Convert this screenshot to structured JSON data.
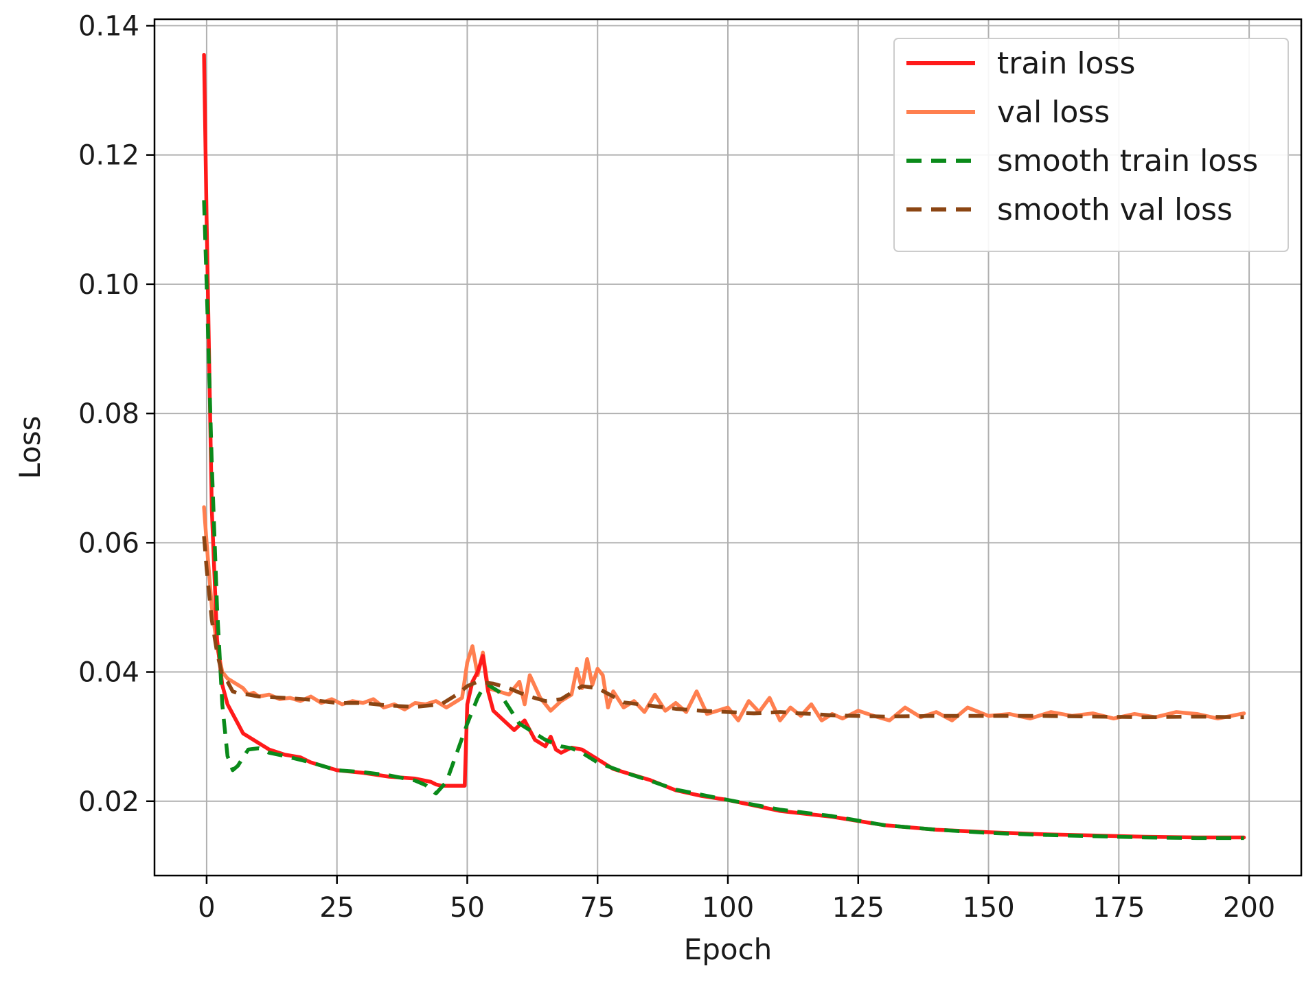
{
  "chart_data": {
    "type": "line",
    "title": "",
    "xlabel": "Epoch",
    "ylabel": "Loss",
    "xlim": [
      -10,
      210
    ],
    "ylim": [
      0.0085,
      0.141
    ],
    "xticks": [
      0,
      25,
      50,
      75,
      100,
      125,
      150,
      175,
      200
    ],
    "yticks": [
      0.02,
      0.04,
      0.06,
      0.08,
      0.1,
      0.12,
      0.14
    ],
    "ytick_labels": [
      "0.02",
      "0.04",
      "0.06",
      "0.08",
      "0.10",
      "0.12",
      "0.14"
    ],
    "grid": true,
    "legend_position": "top-right",
    "series": [
      {
        "name": "train loss",
        "color": "#ff1a1a",
        "dash": "solid",
        "x": [
          -0.5,
          0,
          1,
          2,
          3,
          4,
          5,
          6,
          7,
          8,
          10,
          12,
          15,
          18,
          20,
          25,
          30,
          35,
          40,
          43,
          44,
          45,
          47,
          49,
          49.5,
          50,
          51,
          52,
          53,
          54,
          55,
          57,
          59,
          61,
          63,
          65,
          66,
          67,
          68,
          70,
          72,
          75,
          78,
          80,
          85,
          90,
          95,
          100,
          110,
          120,
          130,
          140,
          150,
          160,
          170,
          180,
          190,
          199
        ],
        "y": [
          0.1355,
          0.11,
          0.065,
          0.045,
          0.038,
          0.035,
          0.0335,
          0.032,
          0.0305,
          0.03,
          0.029,
          0.028,
          0.0272,
          0.0268,
          0.026,
          0.0248,
          0.0244,
          0.0238,
          0.0235,
          0.023,
          0.0226,
          0.0224,
          0.0224,
          0.0224,
          0.0224,
          0.035,
          0.0385,
          0.04,
          0.0425,
          0.037,
          0.034,
          0.0325,
          0.031,
          0.0325,
          0.0295,
          0.0285,
          0.03,
          0.028,
          0.0275,
          0.0283,
          0.028,
          0.0265,
          0.025,
          0.0245,
          0.0233,
          0.0217,
          0.0208,
          0.0202,
          0.0185,
          0.0176,
          0.0163,
          0.0156,
          0.0152,
          0.0149,
          0.0147,
          0.0145,
          0.0144,
          0.0144
        ]
      },
      {
        "name": "val loss",
        "color": "#ff7f4f",
        "dash": "solid",
        "x": [
          -0.5,
          0,
          1,
          2,
          3,
          4,
          5,
          6,
          7,
          8,
          9,
          10,
          12,
          14,
          16,
          18,
          20,
          22,
          24,
          26,
          28,
          30,
          32,
          34,
          36,
          38,
          40,
          42,
          44,
          46,
          48,
          49,
          50,
          51,
          52,
          53,
          54,
          56,
          58,
          60,
          61,
          62,
          64,
          66,
          68,
          70,
          71,
          72,
          73,
          74,
          75,
          76,
          77,
          78,
          80,
          82,
          84,
          86,
          88,
          90,
          92,
          94,
          96,
          98,
          100,
          102,
          104,
          106,
          108,
          110,
          112,
          114,
          116,
          118,
          120,
          122,
          125,
          128,
          131,
          134,
          137,
          140,
          143,
          146,
          150,
          154,
          158,
          162,
          166,
          170,
          174,
          178,
          182,
          186,
          190,
          194,
          199
        ],
        "y": [
          0.0655,
          0.06,
          0.05,
          0.044,
          0.04,
          0.039,
          0.0385,
          0.038,
          0.0375,
          0.0365,
          0.0368,
          0.0362,
          0.0365,
          0.0358,
          0.036,
          0.0355,
          0.0362,
          0.0352,
          0.0358,
          0.035,
          0.0355,
          0.0352,
          0.0358,
          0.0345,
          0.035,
          0.0342,
          0.0352,
          0.035,
          0.0355,
          0.0345,
          0.0355,
          0.036,
          0.0415,
          0.044,
          0.0395,
          0.043,
          0.0375,
          0.037,
          0.0365,
          0.0385,
          0.035,
          0.0395,
          0.036,
          0.034,
          0.0355,
          0.0365,
          0.0405,
          0.0375,
          0.042,
          0.038,
          0.0405,
          0.0395,
          0.0345,
          0.037,
          0.0345,
          0.0355,
          0.0338,
          0.0365,
          0.034,
          0.0352,
          0.0338,
          0.037,
          0.0335,
          0.034,
          0.0345,
          0.0325,
          0.0355,
          0.0338,
          0.036,
          0.0325,
          0.0345,
          0.0332,
          0.035,
          0.0325,
          0.0335,
          0.0328,
          0.034,
          0.0332,
          0.0325,
          0.0345,
          0.033,
          0.0338,
          0.0325,
          0.0345,
          0.0332,
          0.0335,
          0.0328,
          0.0338,
          0.0332,
          0.0336,
          0.0328,
          0.0335,
          0.033,
          0.0338,
          0.0335,
          0.0328,
          0.0336
        ]
      },
      {
        "name": "smooth train loss",
        "color": "#0a8a1a",
        "dash": "dashed",
        "x": [
          -0.5,
          0,
          1,
          2,
          3,
          4,
          5,
          6,
          7,
          8,
          10,
          12,
          15,
          20,
          25,
          30,
          35,
          40,
          42,
          43,
          44,
          46,
          48,
          50,
          52,
          53,
          54,
          56,
          58,
          60,
          62,
          65,
          68,
          70,
          72,
          75,
          80,
          85,
          90,
          95,
          100,
          110,
          120,
          130,
          140,
          150,
          160,
          170,
          180,
          190,
          199
        ],
        "y": [
          0.113,
          0.1,
          0.072,
          0.05,
          0.035,
          0.027,
          0.0248,
          0.0255,
          0.0268,
          0.028,
          0.0282,
          0.0275,
          0.027,
          0.026,
          0.0248,
          0.0245,
          0.024,
          0.0232,
          0.0225,
          0.0218,
          0.0212,
          0.023,
          0.0275,
          0.032,
          0.036,
          0.0375,
          0.038,
          0.037,
          0.0345,
          0.032,
          0.031,
          0.0295,
          0.0285,
          0.0282,
          0.0275,
          0.026,
          0.0245,
          0.0232,
          0.0218,
          0.021,
          0.0202,
          0.0187,
          0.0177,
          0.0163,
          0.0156,
          0.0151,
          0.0148,
          0.0146,
          0.0144,
          0.0143,
          0.0143
        ]
      },
      {
        "name": "smooth val loss",
        "color": "#8b4513",
        "dash": "dashed",
        "x": [
          -0.5,
          0,
          1,
          2,
          3,
          4,
          5,
          6,
          8,
          10,
          15,
          20,
          25,
          30,
          35,
          40,
          45,
          48,
          50,
          52,
          55,
          58,
          60,
          62,
          65,
          68,
          70,
          72,
          75,
          78,
          80,
          85,
          90,
          95,
          100,
          105,
          110,
          120,
          130,
          140,
          150,
          160,
          170,
          180,
          190,
          199
        ],
        "y": [
          0.061,
          0.056,
          0.048,
          0.043,
          0.0395,
          0.0385,
          0.037,
          0.0367,
          0.0365,
          0.0362,
          0.036,
          0.0357,
          0.0352,
          0.0352,
          0.0348,
          0.0346,
          0.035,
          0.0365,
          0.0378,
          0.0385,
          0.0382,
          0.0375,
          0.0368,
          0.0362,
          0.0355,
          0.0358,
          0.0368,
          0.0378,
          0.0375,
          0.0362,
          0.0353,
          0.0348,
          0.0343,
          0.034,
          0.0338,
          0.0336,
          0.0338,
          0.0333,
          0.0331,
          0.0332,
          0.0332,
          0.0332,
          0.0331,
          0.033,
          0.0331,
          0.033
        ]
      }
    ]
  }
}
